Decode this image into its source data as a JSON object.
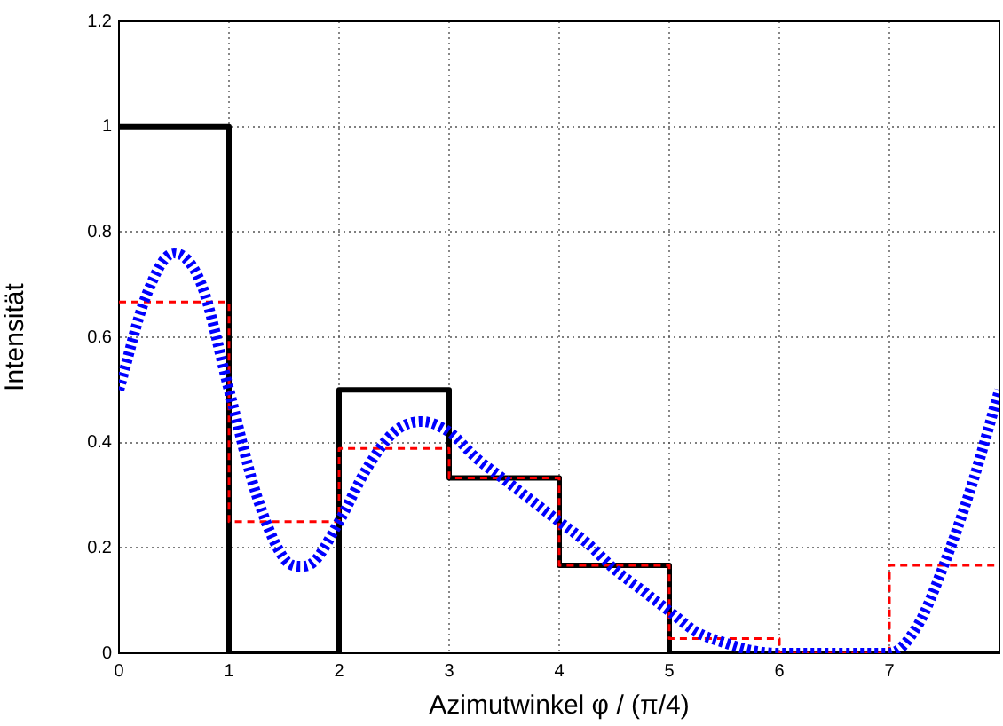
{
  "chart_data": {
    "type": "step",
    "xlabel": "Azimutwinkel φ / (π/4)",
    "ylabel": "Intensität",
    "xlim": [
      0,
      8
    ],
    "xticks": [
      0,
      1,
      2,
      3,
      4,
      5,
      6,
      7
    ],
    "ylim": [
      0,
      1.2
    ],
    "yticks": [
      0,
      0.2,
      0.4,
      0.6,
      0.8,
      1,
      1.2
    ],
    "grid": true,
    "series": [
      {
        "color": "#000000",
        "line_style": "solid",
        "x": [
          0,
          1,
          2,
          3,
          4,
          5,
          6,
          7,
          8
        ],
        "values": [
          1,
          0,
          0.5,
          0.333,
          0.167,
          0,
          0,
          0,
          0
        ]
      },
      {
        "type": "step",
        "color": "#ff0000",
        "line_style": "dashed",
        "x": [
          0,
          1,
          2,
          3,
          4,
          5,
          6,
          7,
          8
        ],
        "values": [
          0.667,
          0.25,
          0.389,
          0.333,
          0.167,
          0.028,
          0,
          0.167,
          0.167
        ]
      },
      {
        "type": "line",
        "color": "#0000ff",
        "line_style": "dotted",
        "x": [
          0,
          0.25,
          0.5,
          0.75,
          1,
          1.25,
          1.5,
          1.65,
          1.75,
          2,
          2.25,
          2.5,
          2.75,
          3,
          3.25,
          3.5,
          3.75,
          4,
          4.25,
          4.5,
          4.75,
          5,
          5.25,
          5.5,
          5.75,
          6,
          6.5,
          7,
          7.25,
          7.5,
          7.75,
          8
        ],
        "values": [
          0.5,
          0.68,
          0.76,
          0.7,
          0.5,
          0.3,
          0.18,
          0.165,
          0.17,
          0.25,
          0.35,
          0.42,
          0.44,
          0.42,
          0.37,
          0.33,
          0.29,
          0.25,
          0.21,
          0.16,
          0.12,
          0.08,
          0.04,
          0.02,
          0.005,
          0,
          0,
          0,
          0.05,
          0.17,
          0.32,
          0.5
        ]
      }
    ]
  }
}
